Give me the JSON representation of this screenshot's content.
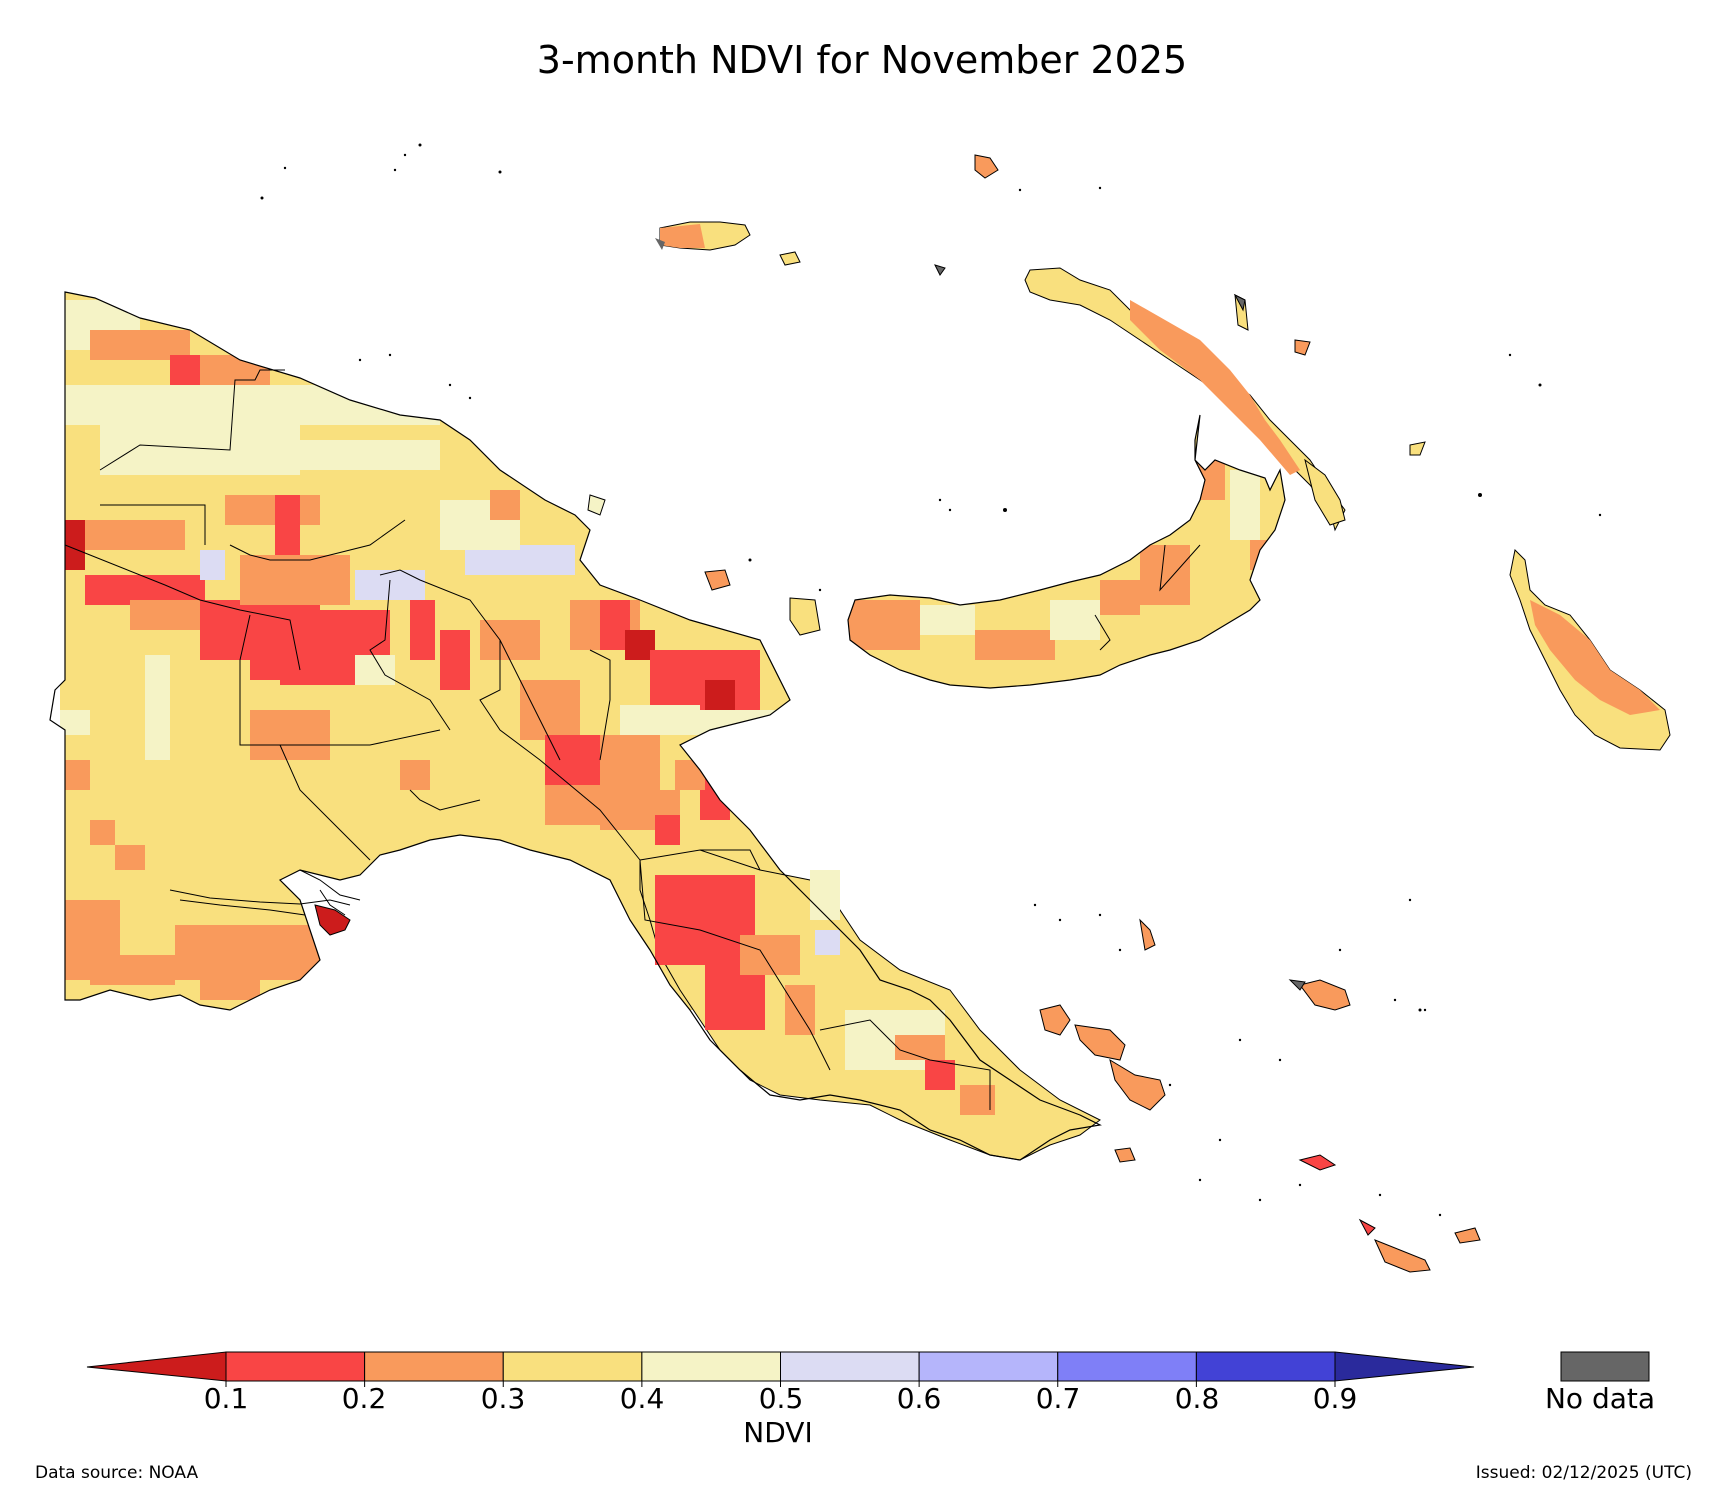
{
  "title": "3-month NDVI for November 2025",
  "colorbar": {
    "label": "NDVI",
    "ticks": [
      "0.1",
      "0.2",
      "0.3",
      "0.4",
      "0.5",
      "0.6",
      "0.7",
      "0.8",
      "0.9"
    ],
    "colors": [
      "#cc1c1c",
      "#f94545",
      "#f99a5c",
      "#f9e07e",
      "#f5f3c6",
      "#dcdcf3",
      "#b5b5fb",
      "#7f7ff7",
      "#4242d6",
      "#2a2a9c"
    ],
    "no_data_label": "No data",
    "no_data_color": "#666666"
  },
  "footer": {
    "source": "Data source: NOAA",
    "issued": "Issued: 02/12/2025 (UTC)"
  },
  "map": {
    "region": "Papua New Guinea",
    "variable": "NDVI",
    "period": "3-month",
    "month": "November 2025",
    "outline_color": "#000000",
    "background": "#ffffff"
  }
}
